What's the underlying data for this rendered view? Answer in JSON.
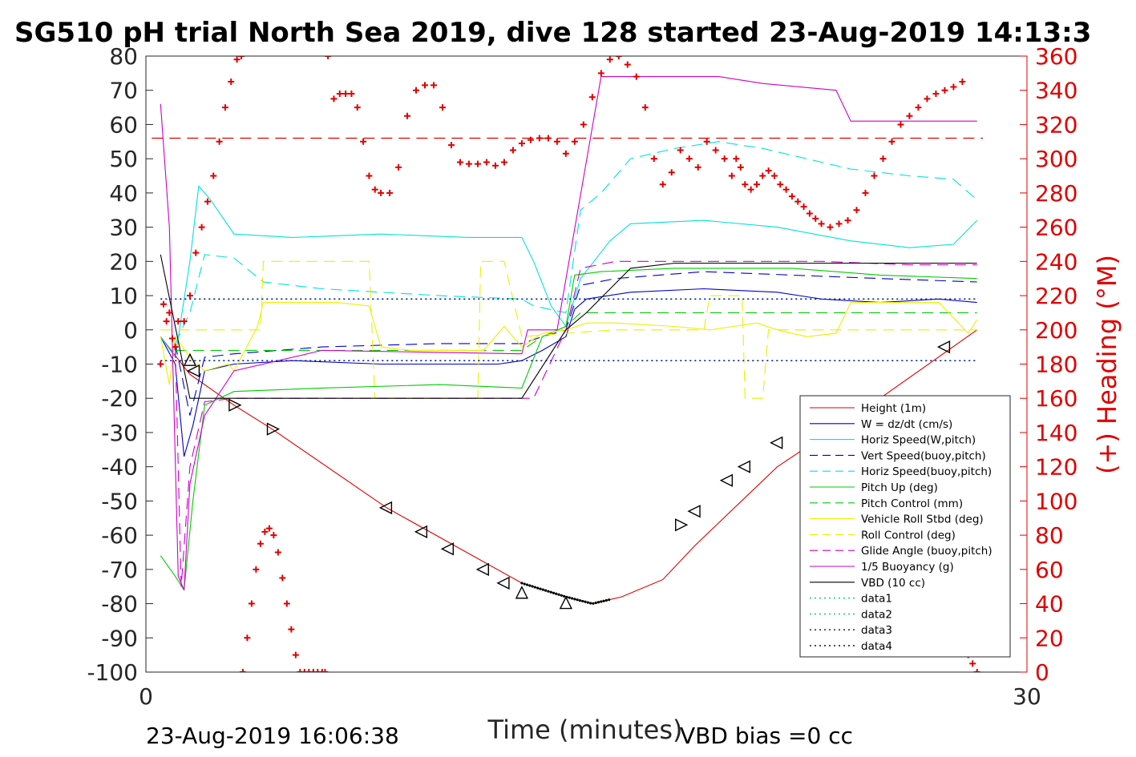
{
  "chart_data": {
    "type": "line",
    "title": "SG510 pH trial North Sea 2019, dive 128 started 23-Aug-2019 14:13:3",
    "xlabel": "Time (minutes)",
    "ylabel_right": "(+) Heading (°M)",
    "footer_left": "23-Aug-2019 16:06:38",
    "footer_right": "VBD bias =0 cc",
    "xlim": [
      0,
      30
    ],
    "ylim_left": [
      -100,
      80
    ],
    "ylim_right": [
      0,
      360
    ],
    "x_ticks": [
      "0",
      "30"
    ],
    "y_ticks_left": [
      "80",
      "70",
      "60",
      "50",
      "40",
      "30",
      "20",
      "10",
      "0",
      "-10",
      "-20",
      "-30",
      "-40",
      "-50",
      "-60",
      "-70",
      "-80",
      "-90",
      "-100"
    ],
    "y_ticks_right": [
      "360",
      "340",
      "320",
      "300",
      "280",
      "260",
      "240",
      "220",
      "200",
      "180",
      "160",
      "140",
      "120",
      "100",
      "80",
      "60",
      "40",
      "20",
      "0"
    ],
    "grid": false,
    "legend_position": "lower-right",
    "colors": {
      "red": "#e00000",
      "blue": "#0000cc",
      "cyan": "#00e0e0",
      "green": "#00cc00",
      "yellow": "#eeee00",
      "magenta": "#cc00cc",
      "black": "#000000",
      "dotted_green": "#00cc66",
      "dotted_navy": "#000099"
    },
    "legend": [
      {
        "name": "Height (1m)",
        "color": "#e00000",
        "style": "solid"
      },
      {
        "name": "W = dz/dt (cm/s)",
        "color": "#0000cc",
        "style": "solid"
      },
      {
        "name": "Horiz Speed(W,pitch)",
        "color": "#00e0e0",
        "style": "solid"
      },
      {
        "name": "Vert Speed(buoy,pitch)",
        "color": "#0000cc",
        "style": "dashed"
      },
      {
        "name": "Horiz Speed(buoy,pitch)",
        "color": "#00e0e0",
        "style": "dashed"
      },
      {
        "name": "Pitch Up (deg)",
        "color": "#00cc00",
        "style": "solid"
      },
      {
        "name": "Pitch Control (mm)",
        "color": "#00cc00",
        "style": "dashed"
      },
      {
        "name": "Vehicle Roll Stbd (deg)",
        "color": "#eeee00",
        "style": "solid"
      },
      {
        "name": "Roll Control (deg)",
        "color": "#eeee00",
        "style": "dashed"
      },
      {
        "name": "Glide Angle (buoy,pitch)",
        "color": "#cc00cc",
        "style": "dashed"
      },
      {
        "name": "1/5 Buoyancy (g)",
        "color": "#cc00cc",
        "style": "solid"
      },
      {
        "name": "VBD (10 cc)",
        "color": "#000000",
        "style": "solid"
      },
      {
        "name": "data1",
        "color": "#00cc66",
        "style": "dotted"
      },
      {
        "name": "data2",
        "color": "#00cc66",
        "style": "dotted"
      },
      {
        "name": "data3",
        "color": "#000099",
        "style": "dotted"
      },
      {
        "name": "data4",
        "color": "#000099",
        "style": "dotted"
      }
    ],
    "series": [
      {
        "name": "Height (1m)",
        "axis": "left",
        "color": "#e00000",
        "style": "solid",
        "x": [
          0.5,
          1.5,
          3.0,
          4.3,
          8.2,
          10.5,
          12.8,
          14.3,
          15.2,
          16.2,
          17.6,
          18.7,
          21.5,
          25.0,
          28.3
        ],
        "y": [
          -2,
          -13,
          -22,
          -29,
          -52,
          -63,
          -74,
          -78,
          -80,
          -78,
          -73,
          -63,
          -40,
          -20,
          0
        ]
      },
      {
        "name": "W = dz/dt (cm/s)",
        "axis": "left",
        "color": "#0000cc",
        "style": "solid",
        "x": [
          0.5,
          1.0,
          1.3,
          1.6,
          2.0,
          3.0,
          5.0,
          8.0,
          12.0,
          12.8,
          13.5,
          14.3,
          14.6,
          15.0,
          16.5,
          19.0,
          21.5,
          23.0,
          25.0,
          27.0,
          28.3
        ],
        "y": [
          -2,
          -10,
          -37,
          -28,
          -12,
          -10,
          -9,
          -10,
          -10,
          -9,
          -6,
          -2,
          6,
          9,
          11,
          12,
          11,
          9,
          8,
          9,
          8
        ]
      },
      {
        "name": "Horiz Speed(W,pitch)",
        "axis": "left",
        "color": "#00e0e0",
        "style": "solid",
        "x": [
          0.5,
          1.0,
          1.5,
          1.8,
          2.2,
          3.0,
          5.0,
          8.0,
          11.0,
          12.8,
          13.2,
          13.8,
          14.3,
          14.8,
          15.8,
          16.5,
          19.0,
          21.5,
          24.0,
          26.0,
          27.5,
          28.3
        ],
        "y": [
          -2,
          -8,
          20,
          42,
          38,
          28,
          27,
          28,
          27,
          27,
          20,
          7,
          1,
          15,
          26,
          31,
          32,
          30,
          26,
          24,
          25,
          32
        ]
      },
      {
        "name": "Vert Speed(buoy,pitch)",
        "axis": "left",
        "color": "#0000cc",
        "style": "dashed",
        "x": [
          1.0,
          1.5,
          2.0,
          3.0,
          6.0,
          10.0,
          12.8,
          13.5,
          14.3,
          14.8,
          16.0,
          19.0,
          22.0,
          25.0,
          28.3
        ],
        "y": [
          -4,
          -25,
          -8,
          -7,
          -5,
          -4,
          -4,
          -2,
          0,
          13,
          15,
          17,
          16,
          15,
          14
        ]
      },
      {
        "name": "Horiz Speed(buoy,pitch)",
        "axis": "left",
        "color": "#00e0e0",
        "style": "dashed",
        "x": [
          1.0,
          1.5,
          2.0,
          3.0,
          4.0,
          6.0,
          10.0,
          12.8,
          13.2,
          14.3,
          14.8,
          15.5,
          16.5,
          18.0,
          19.5,
          21.0,
          22.5,
          24.0,
          26.0,
          27.5,
          28.3
        ],
        "y": [
          -4,
          5,
          22,
          21,
          14,
          12,
          10,
          9,
          7,
          5,
          35,
          40,
          50,
          53,
          55,
          53,
          50,
          47,
          45,
          44,
          38
        ]
      },
      {
        "name": "Pitch Up (deg)",
        "axis": "left",
        "color": "#00cc00",
        "style": "solid",
        "x": [
          0.5,
          1.0,
          1.3,
          1.6,
          2.0,
          3.0,
          6.0,
          10.0,
          12.8,
          13.5,
          14.3,
          14.6,
          15.5,
          18.0,
          22.0,
          25.0,
          28.3
        ],
        "y": [
          -66,
          -72,
          -76,
          -50,
          -22,
          -18,
          -17,
          -16,
          -17,
          -2,
          1,
          16,
          17,
          18,
          18,
          16,
          15
        ]
      },
      {
        "name": "Pitch Control (mm)",
        "axis": "left",
        "color": "#00cc00",
        "style": "dashed",
        "x": [
          1.0,
          2.0,
          3.0,
          8.0,
          12.8,
          13.5,
          14.3,
          14.8,
          16.0,
          20.0,
          24.0,
          28.3
        ],
        "y": [
          -6,
          -6,
          -6,
          -6,
          -6,
          -2,
          1,
          5,
          5,
          5,
          5,
          5
        ]
      },
      {
        "name": "Vehicle Roll Stbd (deg)",
        "axis": "left",
        "color": "#eeee00",
        "style": "solid",
        "x": [
          0.5,
          0.8,
          1.0,
          1.5,
          2.0,
          2.8,
          3.0,
          3.8,
          4.0,
          6.5,
          7.6,
          8.0,
          9.0,
          11.5,
          12.2,
          12.8,
          13.5,
          14.3,
          15.0,
          16.0,
          18.0,
          19.2,
          20.0,
          20.8,
          21.5,
          22.5,
          23.5,
          24.0,
          25.0,
          27.0,
          28.0,
          28.3
        ],
        "y": [
          -2,
          -16,
          -2,
          -8,
          -12,
          -10,
          -12,
          1,
          8,
          8,
          7,
          -5,
          -6,
          -6,
          1,
          -5,
          -1,
          0,
          2,
          2,
          1,
          0,
          1,
          2,
          0,
          -2,
          -1,
          8,
          8,
          8,
          -1,
          3
        ]
      },
      {
        "name": "Roll Control (deg)",
        "axis": "left",
        "color": "#eeee00",
        "style": "dashed",
        "x": [
          0.5,
          1.0,
          3.0,
          3.9,
          4.0,
          7.6,
          7.8,
          11.3,
          11.4,
          12.2,
          12.8,
          14.3,
          16.0,
          19.0,
          19.2,
          20.3,
          20.4,
          21.0,
          21.2,
          22.5,
          23.0,
          24.0,
          26.0,
          27.5,
          28.3
        ],
        "y": [
          0,
          0,
          0,
          0,
          20,
          20,
          -20,
          -20,
          20,
          20,
          -2,
          -1,
          0,
          0,
          10,
          10,
          -20,
          -20,
          0,
          0,
          0,
          0,
          0,
          0,
          0
        ]
      },
      {
        "name": "Glide Angle (buoy,pitch)",
        "axis": "left",
        "color": "#cc00cc",
        "style": "dashed",
        "x": [
          1.0,
          1.2,
          1.5,
          2.0,
          3.0,
          6.0,
          10.0,
          12.8,
          13.2,
          14.3,
          14.8,
          16.0,
          19.0,
          23.0,
          26.0,
          28.3
        ],
        "y": [
          -5,
          -75,
          -40,
          -21,
          -20,
          -20,
          -20,
          -20,
          -20,
          0,
          18,
          20,
          20,
          20,
          19,
          19
        ]
      },
      {
        "name": "1/5 Buoyancy (g)",
        "axis": "left",
        "color": "#cc00cc",
        "style": "solid",
        "x": [
          0.5,
          0.8,
          1.1,
          1.3,
          1.5,
          2.0,
          3.0,
          6.0,
          12.8,
          13.0,
          14.0,
          15.5,
          19.5,
          21.0,
          23.5,
          24.0,
          28.3
        ],
        "y": [
          66,
          30,
          -72,
          -76,
          -45,
          -25,
          -12,
          -6,
          -7,
          0,
          0,
          74,
          74,
          72,
          70,
          61,
          61
        ]
      },
      {
        "name": "VBD (10 cc)",
        "axis": "left",
        "color": "#000000",
        "style": "solid",
        "x": [
          0.5,
          1.5,
          3.0,
          6.0,
          12.8,
          14.3,
          15.0,
          16.5,
          18.0,
          28.3
        ],
        "y": [
          22,
          -20,
          -20,
          -20,
          -20,
          0,
          5,
          18,
          19.5,
          19.5
        ]
      },
      {
        "name": "data1",
        "axis": "left",
        "color": "#00cc66",
        "style": "dotted",
        "x": [
          0.5,
          28.3
        ],
        "y": [
          9,
          9
        ]
      },
      {
        "name": "data2",
        "axis": "left",
        "color": "#00cc66",
        "style": "dotted",
        "x": [
          0.5,
          28.3
        ],
        "y": [
          -9,
          -9
        ]
      },
      {
        "name": "data3",
        "axis": "left",
        "color": "#000099",
        "style": "dotted",
        "x": [
          0.5,
          28.3
        ],
        "y": [
          9,
          9
        ]
      },
      {
        "name": "data4",
        "axis": "left",
        "color": "#000099",
        "style": "dotted",
        "x": [
          0.5,
          28.3
        ],
        "y": [
          -9,
          -9
        ]
      }
    ],
    "reference_line": {
      "axis": "left",
      "y": 56,
      "color": "#e00000",
      "style": "dashed",
      "x": [
        0.2,
        28.5
      ]
    },
    "heading_markers": {
      "axis": "right",
      "color": "#e00000",
      "marker": "+",
      "x": [
        0.5,
        0.6,
        0.7,
        0.8,
        0.9,
        1.0,
        1.1,
        1.3,
        1.5,
        1.7,
        1.9,
        2.1,
        2.3,
        2.5,
        2.7,
        2.9,
        3.1,
        3.25,
        3.3,
        3.45,
        3.6,
        3.75,
        3.9,
        4.05,
        4.2,
        4.35,
        4.5,
        4.65,
        4.8,
        4.95,
        5.1,
        5.25,
        5.4,
        5.55,
        5.7,
        5.85,
        6.0,
        6.1,
        6.2,
        6.4,
        6.6,
        6.8,
        7.0,
        7.2,
        7.4,
        7.6,
        7.8,
        8.0,
        8.3,
        8.6,
        8.9,
        9.2,
        9.5,
        9.8,
        10.1,
        10.4,
        10.7,
        11.0,
        11.3,
        11.6,
        11.9,
        12.2,
        12.5,
        12.8,
        13.1,
        13.4,
        13.7,
        14.0,
        14.3,
        14.6,
        14.9,
        15.2,
        15.5,
        15.8,
        16.1,
        16.4,
        16.7,
        17.0,
        17.3,
        17.6,
        17.9,
        18.2,
        18.5,
        18.8,
        19.1,
        19.4,
        19.7,
        19.95,
        20.1,
        20.25,
        20.4,
        20.6,
        20.8,
        21.0,
        21.2,
        21.4,
        21.6,
        21.8,
        22.0,
        22.2,
        22.4,
        22.6,
        22.8,
        23.0,
        23.3,
        23.6,
        23.9,
        24.2,
        24.5,
        24.8,
        25.1,
        25.4,
        25.7,
        26.0,
        26.3,
        26.6,
        26.9,
        27.2,
        27.5,
        27.8,
        28.0,
        28.15,
        28.3
      ],
      "y": [
        180,
        215,
        205,
        210,
        195,
        190,
        205,
        205,
        220,
        245,
        260,
        275,
        290,
        310,
        330,
        345,
        358,
        360,
        0,
        20,
        40,
        60,
        75,
        82,
        84,
        80,
        70,
        55,
        40,
        25,
        10,
        0,
        0,
        0,
        0,
        0,
        0,
        0,
        360,
        335,
        338,
        338,
        338,
        330,
        310,
        290,
        282,
        280,
        280,
        295,
        325,
        340,
        343,
        343,
        330,
        308,
        298,
        297,
        297,
        298,
        296,
        298,
        305,
        309,
        311,
        312,
        312,
        310,
        303,
        310,
        320,
        336,
        350,
        358,
        360,
        355,
        348,
        330,
        300,
        285,
        292,
        305,
        300,
        295,
        310,
        305,
        300,
        290,
        300,
        295,
        285,
        282,
        285,
        290,
        293,
        290,
        285,
        282,
        278,
        275,
        272,
        268,
        265,
        262,
        260,
        262,
        264,
        270,
        280,
        290,
        300,
        310,
        320,
        325,
        330,
        335,
        338,
        340,
        342,
        345,
        10,
        5,
        0
      ]
    },
    "triangle_markers": {
      "color": "#000000",
      "x": [
        1.5,
        1.65,
        3.0,
        4.3,
        8.2,
        9.4,
        10.3,
        11.5,
        12.2,
        12.8,
        14.3,
        18.2,
        18.7,
        19.8,
        20.4,
        21.5,
        27.2
      ],
      "y": [
        -9,
        -12,
        -22,
        -29,
        -52,
        -59,
        -64,
        -70,
        -74,
        -77,
        -80,
        -57,
        -53,
        -44,
        -40,
        -33,
        -5
      ],
      "direction": [
        "up",
        "left",
        "right",
        "right",
        "left",
        "left",
        "left",
        "left",
        "left",
        "up",
        "up",
        "right",
        "left",
        "left",
        "left",
        "left",
        "left"
      ]
    },
    "apogee_dots": {
      "color": "#000000",
      "x_range": [
        12.8,
        15.8
      ],
      "y_min": -80
    }
  }
}
